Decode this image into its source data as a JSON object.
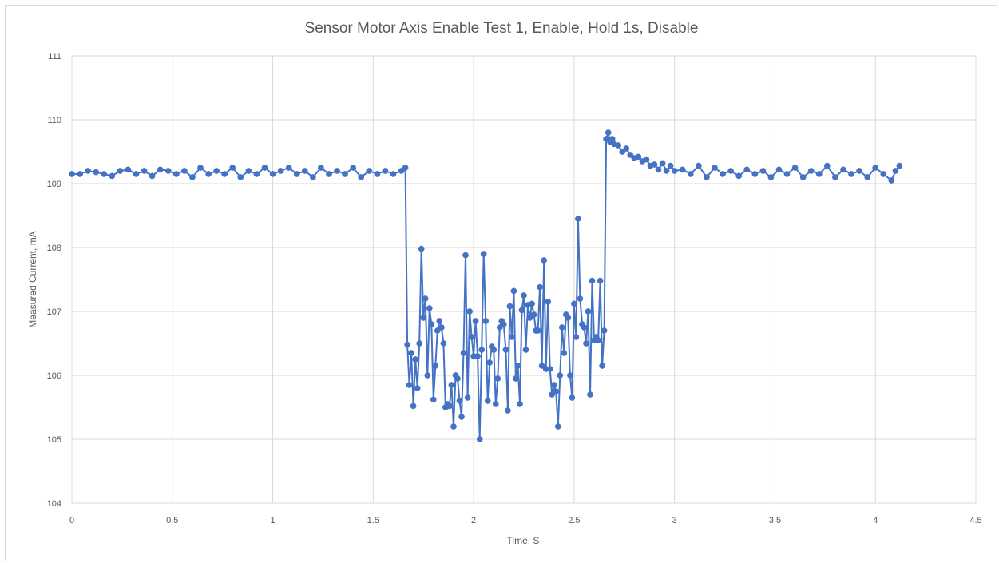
{
  "chart_data": {
    "type": "scatter",
    "title": "Sensor Motor Axis Enable Test 1, Enable, Hold 1s, Disable",
    "xlabel": "Time, S",
    "ylabel": "Measured Current, mA",
    "xlim": [
      0,
      4.5
    ],
    "ylim": [
      104,
      111
    ],
    "x_ticks": [
      "0",
      "0.5",
      "1",
      "1.5",
      "2",
      "2.5",
      "3",
      "3.5",
      "4",
      "4.5"
    ],
    "y_ticks": [
      "104",
      "105",
      "106",
      "107",
      "108",
      "109",
      "110",
      "111"
    ],
    "grid": true,
    "legend": "none",
    "series": [
      {
        "color": "#4472c4",
        "marker": "circle",
        "line": true,
        "points": [
          [
            0.0,
            109.15
          ],
          [
            0.04,
            109.15
          ],
          [
            0.08,
            109.2
          ],
          [
            0.12,
            109.18
          ],
          [
            0.16,
            109.15
          ],
          [
            0.2,
            109.12
          ],
          [
            0.24,
            109.2
          ],
          [
            0.28,
            109.22
          ],
          [
            0.32,
            109.15
          ],
          [
            0.36,
            109.2
          ],
          [
            0.4,
            109.12
          ],
          [
            0.44,
            109.22
          ],
          [
            0.48,
            109.2
          ],
          [
            0.52,
            109.15
          ],
          [
            0.56,
            109.2
          ],
          [
            0.6,
            109.1
          ],
          [
            0.64,
            109.25
          ],
          [
            0.68,
            109.15
          ],
          [
            0.72,
            109.2
          ],
          [
            0.76,
            109.15
          ],
          [
            0.8,
            109.25
          ],
          [
            0.84,
            109.1
          ],
          [
            0.88,
            109.2
          ],
          [
            0.92,
            109.15
          ],
          [
            0.96,
            109.25
          ],
          [
            1.0,
            109.15
          ],
          [
            1.04,
            109.2
          ],
          [
            1.08,
            109.25
          ],
          [
            1.12,
            109.15
          ],
          [
            1.16,
            109.2
          ],
          [
            1.2,
            109.1
          ],
          [
            1.24,
            109.25
          ],
          [
            1.28,
            109.15
          ],
          [
            1.32,
            109.2
          ],
          [
            1.36,
            109.15
          ],
          [
            1.4,
            109.25
          ],
          [
            1.44,
            109.1
          ],
          [
            1.48,
            109.2
          ],
          [
            1.52,
            109.15
          ],
          [
            1.56,
            109.2
          ],
          [
            1.6,
            109.15
          ],
          [
            1.64,
            109.2
          ],
          [
            1.66,
            109.25
          ],
          [
            1.67,
            106.48
          ],
          [
            1.68,
            105.85
          ],
          [
            1.69,
            106.35
          ],
          [
            1.7,
            105.52
          ],
          [
            1.71,
            106.25
          ],
          [
            1.72,
            105.8
          ],
          [
            1.73,
            106.5
          ],
          [
            1.74,
            107.98
          ],
          [
            1.75,
            106.9
          ],
          [
            1.76,
            107.2
          ],
          [
            1.77,
            106.0
          ],
          [
            1.78,
            107.05
          ],
          [
            1.79,
            106.8
          ],
          [
            1.8,
            105.62
          ],
          [
            1.81,
            106.15
          ],
          [
            1.82,
            106.7
          ],
          [
            1.83,
            106.85
          ],
          [
            1.84,
            106.75
          ],
          [
            1.85,
            106.5
          ],
          [
            1.86,
            105.5
          ],
          [
            1.87,
            105.55
          ],
          [
            1.88,
            105.52
          ],
          [
            1.89,
            105.85
          ],
          [
            1.9,
            105.2
          ],
          [
            1.91,
            106.0
          ],
          [
            1.92,
            105.95
          ],
          [
            1.93,
            105.6
          ],
          [
            1.94,
            105.35
          ],
          [
            1.95,
            106.35
          ],
          [
            1.96,
            107.88
          ],
          [
            1.97,
            105.65
          ],
          [
            1.98,
            107.0
          ],
          [
            1.99,
            106.6
          ],
          [
            2.0,
            106.3
          ],
          [
            2.01,
            106.85
          ],
          [
            2.02,
            106.3
          ],
          [
            2.03,
            105.0
          ],
          [
            2.04,
            106.4
          ],
          [
            2.05,
            107.9
          ],
          [
            2.06,
            106.85
          ],
          [
            2.07,
            105.6
          ],
          [
            2.08,
            106.2
          ],
          [
            2.09,
            106.45
          ],
          [
            2.1,
            106.4
          ],
          [
            2.11,
            105.55
          ],
          [
            2.12,
            105.95
          ],
          [
            2.13,
            106.75
          ],
          [
            2.14,
            106.85
          ],
          [
            2.15,
            106.8
          ],
          [
            2.16,
            106.4
          ],
          [
            2.17,
            105.45
          ],
          [
            2.18,
            107.08
          ],
          [
            2.19,
            106.6
          ],
          [
            2.2,
            107.32
          ],
          [
            2.21,
            105.95
          ],
          [
            2.22,
            106.15
          ],
          [
            2.23,
            105.55
          ],
          [
            2.24,
            107.02
          ],
          [
            2.25,
            107.25
          ],
          [
            2.26,
            106.4
          ],
          [
            2.27,
            107.1
          ],
          [
            2.28,
            106.9
          ],
          [
            2.29,
            107.12
          ],
          [
            2.3,
            106.95
          ],
          [
            2.31,
            106.7
          ],
          [
            2.32,
            106.7
          ],
          [
            2.33,
            107.38
          ],
          [
            2.34,
            106.15
          ],
          [
            2.35,
            107.8
          ],
          [
            2.36,
            106.1
          ],
          [
            2.37,
            107.15
          ],
          [
            2.38,
            106.1
          ],
          [
            2.39,
            105.7
          ],
          [
            2.4,
            105.85
          ],
          [
            2.41,
            105.75
          ],
          [
            2.42,
            105.2
          ],
          [
            2.43,
            106.0
          ],
          [
            2.44,
            106.75
          ],
          [
            2.45,
            106.35
          ],
          [
            2.46,
            106.95
          ],
          [
            2.47,
            106.9
          ],
          [
            2.48,
            106.0
          ],
          [
            2.49,
            105.65
          ],
          [
            2.5,
            107.12
          ],
          [
            2.51,
            106.6
          ],
          [
            2.52,
            108.45
          ],
          [
            2.53,
            107.2
          ],
          [
            2.54,
            106.8
          ],
          [
            2.55,
            106.75
          ],
          [
            2.56,
            106.5
          ],
          [
            2.57,
            107.0
          ],
          [
            2.58,
            105.7
          ],
          [
            2.59,
            107.48
          ],
          [
            2.6,
            106.55
          ],
          [
            2.61,
            106.6
          ],
          [
            2.62,
            106.55
          ],
          [
            2.63,
            107.48
          ],
          [
            2.64,
            106.15
          ],
          [
            2.65,
            106.7
          ],
          [
            2.66,
            109.7
          ],
          [
            2.67,
            109.8
          ],
          [
            2.68,
            109.65
          ],
          [
            2.69,
            109.7
          ],
          [
            2.7,
            109.62
          ],
          [
            2.72,
            109.6
          ],
          [
            2.74,
            109.5
          ],
          [
            2.76,
            109.55
          ],
          [
            2.78,
            109.45
          ],
          [
            2.8,
            109.4
          ],
          [
            2.82,
            109.42
          ],
          [
            2.84,
            109.35
          ],
          [
            2.86,
            109.38
          ],
          [
            2.88,
            109.28
          ],
          [
            2.9,
            109.3
          ],
          [
            2.92,
            109.22
          ],
          [
            2.94,
            109.32
          ],
          [
            2.96,
            109.2
          ],
          [
            2.98,
            109.28
          ],
          [
            3.0,
            109.2
          ],
          [
            3.04,
            109.22
          ],
          [
            3.08,
            109.15
          ],
          [
            3.12,
            109.28
          ],
          [
            3.16,
            109.1
          ],
          [
            3.2,
            109.25
          ],
          [
            3.24,
            109.15
          ],
          [
            3.28,
            109.2
          ],
          [
            3.32,
            109.12
          ],
          [
            3.36,
            109.22
          ],
          [
            3.4,
            109.15
          ],
          [
            3.44,
            109.2
          ],
          [
            3.48,
            109.1
          ],
          [
            3.52,
            109.22
          ],
          [
            3.56,
            109.15
          ],
          [
            3.6,
            109.25
          ],
          [
            3.64,
            109.1
          ],
          [
            3.68,
            109.2
          ],
          [
            3.72,
            109.15
          ],
          [
            3.76,
            109.28
          ],
          [
            3.8,
            109.1
          ],
          [
            3.84,
            109.22
          ],
          [
            3.88,
            109.15
          ],
          [
            3.92,
            109.2
          ],
          [
            3.96,
            109.1
          ],
          [
            4.0,
            109.25
          ],
          [
            4.04,
            109.15
          ],
          [
            4.08,
            109.05
          ],
          [
            4.1,
            109.2
          ],
          [
            4.12,
            109.28
          ]
        ]
      }
    ]
  }
}
